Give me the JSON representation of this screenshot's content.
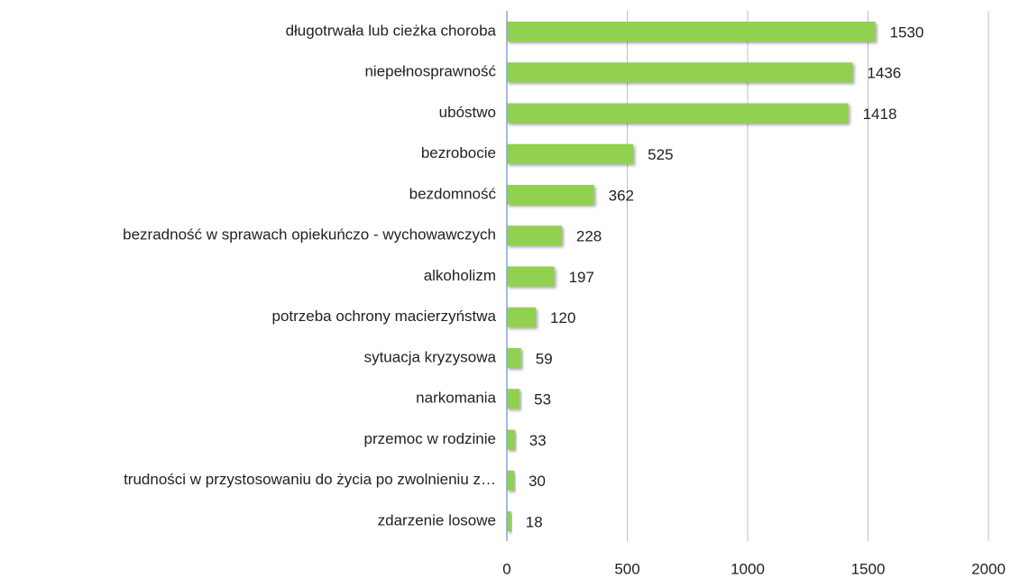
{
  "chart_data": {
    "type": "bar",
    "orientation": "horizontal",
    "categories": [
      "długotrwała lub cieżka choroba",
      "niepełnosprawność",
      "ubóstwo",
      "bezrobocie",
      "bezdomność",
      "bezradność w sprawach opiekuńczo - wychowawczych",
      "alkoholizm",
      "potrzeba ochrony macierzyństwa",
      "sytuacja kryzysowa",
      "narkomania",
      "przemoc w rodzinie",
      "trudności w przystosowaniu do życia po zwolnieniu z…",
      "zdarzenie losowe"
    ],
    "values": [
      1530,
      1436,
      1418,
      525,
      362,
      228,
      197,
      120,
      59,
      53,
      33,
      30,
      18
    ],
    "color": "#92d050",
    "xlim": [
      0,
      2000
    ],
    "xticks": [
      0,
      500,
      1000,
      1500,
      2000
    ],
    "grid": true
  }
}
